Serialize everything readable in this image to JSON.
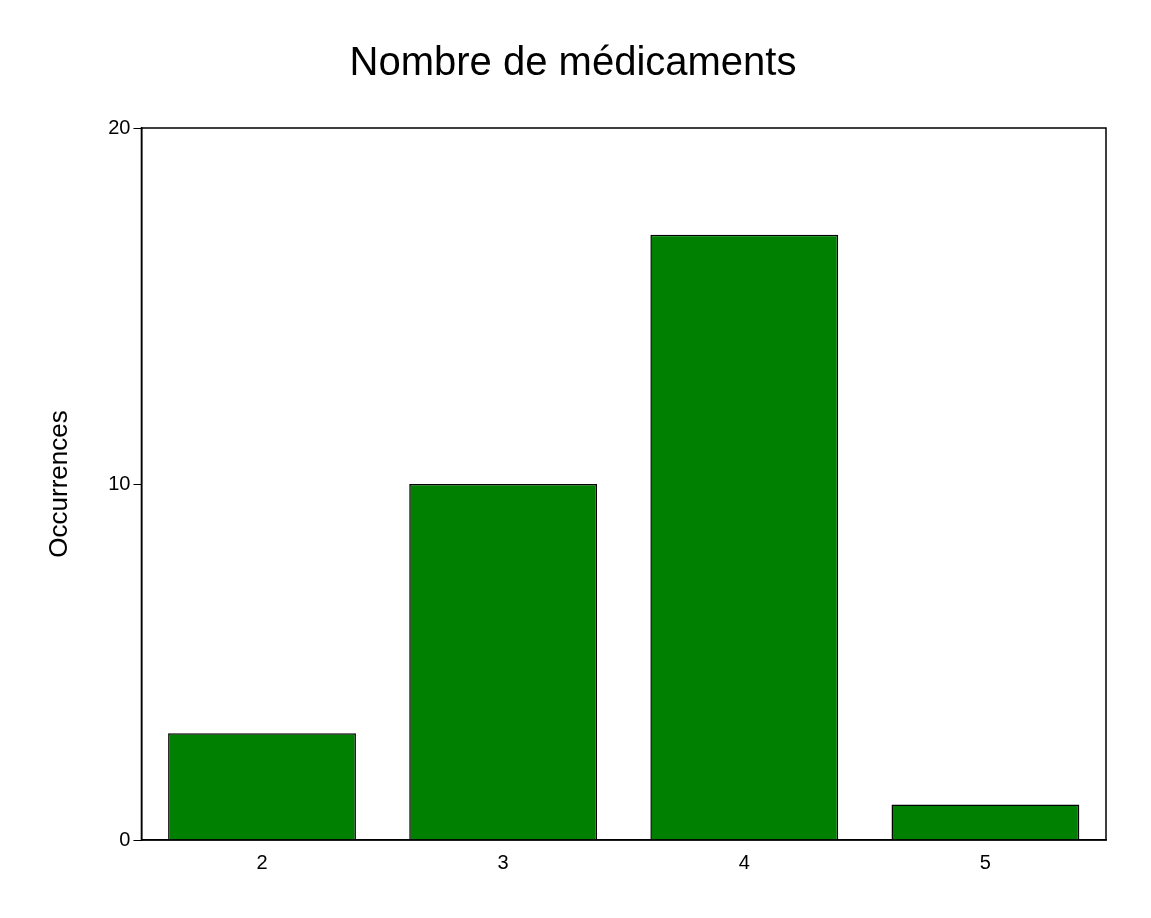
{
  "chart_data": {
    "type": "bar",
    "title": "Nombre de médicaments",
    "ylabel": "Occurrences",
    "categories": [
      "2",
      "3",
      "4",
      "5"
    ],
    "values": [
      3,
      10,
      17,
      1
    ],
    "color": "#008000",
    "ylim": [
      0,
      20
    ],
    "yticks": [
      0,
      10,
      20
    ],
    "grid": false,
    "legend": false
  }
}
